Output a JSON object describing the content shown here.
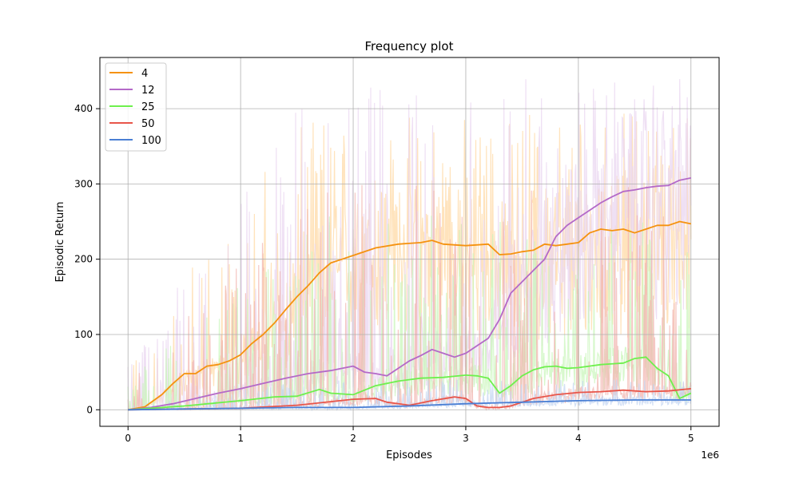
{
  "chart_data": {
    "type": "line",
    "title": "Frequency plot",
    "xlabel": "Episodes",
    "ylabel": "Episodic Return",
    "x_offset_label": "1e6",
    "xlim": [
      -0.25,
      5.25
    ],
    "ylim": [
      -22,
      468
    ],
    "x_ticks": [
      0,
      1,
      2,
      3,
      4,
      5
    ],
    "x_tick_labels": [
      "0",
      "1",
      "2",
      "3",
      "4",
      "5"
    ],
    "y_ticks": [
      0,
      100,
      200,
      300,
      400
    ],
    "y_tick_labels": [
      "0",
      "100",
      "200",
      "300",
      "400"
    ],
    "grid": true,
    "legend_position": "top-left",
    "series": [
      {
        "name": "4",
        "color": "#f5920f",
        "raw_color": "#ffd9a6",
        "raw_max": 395,
        "x": [
          0,
          0.15,
          0.3,
          0.4,
          0.5,
          0.6,
          0.7,
          0.8,
          0.9,
          1.0,
          1.1,
          1.2,
          1.3,
          1.4,
          1.5,
          1.6,
          1.7,
          1.8,
          1.9,
          2.0,
          2.2,
          2.4,
          2.6,
          2.7,
          2.8,
          3.0,
          3.2,
          3.3,
          3.4,
          3.5,
          3.6,
          3.7,
          3.8,
          3.9,
          4.0,
          4.1,
          4.2,
          4.3,
          4.4,
          4.5,
          4.6,
          4.7,
          4.8,
          4.9,
          5.0
        ],
        "y": [
          0,
          4,
          20,
          35,
          48,
          48,
          58,
          60,
          65,
          73,
          88,
          100,
          115,
          133,
          150,
          165,
          182,
          195,
          200,
          205,
          215,
          220,
          222,
          225,
          220,
          218,
          220,
          206,
          207,
          210,
          212,
          220,
          218,
          220,
          222,
          235,
          240,
          238,
          240,
          235,
          240,
          245,
          245,
          250,
          247
        ]
      },
      {
        "name": "12",
        "color": "#b469c8",
        "raw_color": "#ead5f0",
        "raw_max": 440,
        "x": [
          0,
          0.2,
          0.4,
          0.6,
          0.8,
          1.0,
          1.2,
          1.4,
          1.6,
          1.8,
          1.9,
          2.0,
          2.1,
          2.2,
          2.3,
          2.4,
          2.5,
          2.6,
          2.7,
          2.8,
          2.9,
          3.0,
          3.1,
          3.2,
          3.3,
          3.4,
          3.5,
          3.6,
          3.7,
          3.8,
          3.9,
          4.0,
          4.1,
          4.2,
          4.3,
          4.4,
          4.5,
          4.6,
          4.7,
          4.8,
          4.9,
          5.0
        ],
        "y": [
          0,
          3,
          8,
          15,
          22,
          28,
          35,
          42,
          48,
          52,
          55,
          58,
          50,
          48,
          45,
          55,
          65,
          72,
          80,
          75,
          70,
          75,
          85,
          95,
          120,
          155,
          170,
          185,
          200,
          230,
          245,
          255,
          265,
          275,
          283,
          290,
          292,
          295,
          297,
          298,
          305,
          308
        ]
      },
      {
        "name": "25",
        "color": "#6ef04d",
        "raw_color": "#c9f5bb",
        "raw_max": 260,
        "x": [
          0,
          0.5,
          1.0,
          1.3,
          1.5,
          1.7,
          1.8,
          2.0,
          2.2,
          2.4,
          2.6,
          2.8,
          3.0,
          3.1,
          3.2,
          3.3,
          3.4,
          3.5,
          3.6,
          3.7,
          3.8,
          3.9,
          4.0,
          4.2,
          4.4,
          4.5,
          4.6,
          4.7,
          4.8,
          4.9,
          5.0
        ],
        "y": [
          0,
          5,
          12,
          17,
          18,
          27,
          22,
          20,
          32,
          38,
          42,
          43,
          46,
          45,
          42,
          22,
          32,
          45,
          53,
          57,
          58,
          55,
          56,
          60,
          62,
          68,
          70,
          55,
          45,
          15,
          22
        ]
      },
      {
        "name": "50",
        "color": "#e8554a",
        "raw_color": "#f2b6b0",
        "raw_max": 300,
        "x": [
          0,
          0.5,
          1.0,
          1.5,
          2.0,
          2.2,
          2.3,
          2.5,
          2.7,
          2.9,
          3.0,
          3.1,
          3.2,
          3.3,
          3.4,
          3.5,
          3.6,
          3.8,
          4.0,
          4.2,
          4.4,
          4.6,
          4.8,
          5.0
        ],
        "y": [
          0,
          1,
          2,
          6,
          14,
          15,
          10,
          6,
          12,
          17,
          15,
          5,
          3,
          3,
          5,
          10,
          15,
          20,
          23,
          24,
          26,
          24,
          25,
          28
        ]
      },
      {
        "name": "100",
        "color": "#4a7fd4",
        "raw_color": "#c4d6f2",
        "raw_max": 40,
        "x": [
          0,
          0.5,
          1.0,
          1.5,
          2.0,
          2.5,
          3.0,
          3.5,
          4.0,
          4.5,
          5.0
        ],
        "y": [
          0,
          1,
          2,
          3,
          3,
          5,
          8,
          10,
          12,
          13,
          13
        ]
      }
    ]
  }
}
